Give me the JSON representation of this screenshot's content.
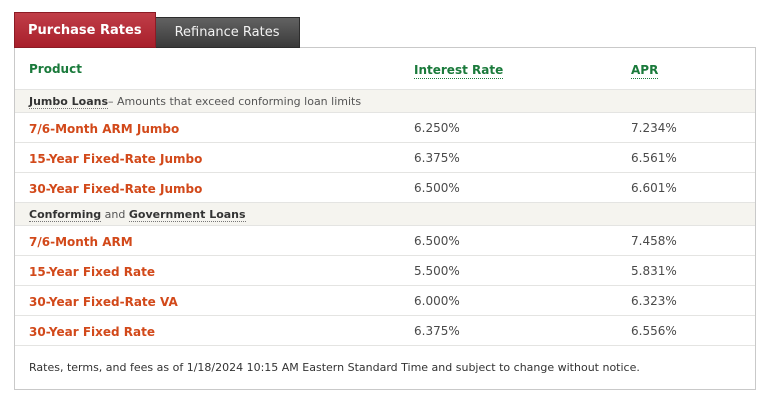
{
  "colors": {
    "active_tab_red": "#a81f2b",
    "inactive_tab_gray": "#3a3a3a",
    "header_green": "#1a7a3b",
    "product_orange": "#d2491a",
    "section_band": "#f5f4ef"
  },
  "tabs": [
    {
      "label": "Purchase Rates",
      "active": true
    },
    {
      "label": "Refinance Rates",
      "active": false
    }
  ],
  "table": {
    "columns": [
      "Product",
      "Interest Rate",
      "APR"
    ],
    "sections": [
      {
        "term1": "Jumbo Loans",
        "mid": "– Amounts that exceed conforming loan limits",
        "rows": [
          {
            "product": "7/6-Month ARM Jumbo",
            "interest_rate": "6.250%",
            "apr": "7.234%"
          },
          {
            "product": "15-Year Fixed-Rate Jumbo",
            "interest_rate": "6.375%",
            "apr": "6.561%"
          },
          {
            "product": "30-Year Fixed-Rate Jumbo",
            "interest_rate": "6.500%",
            "apr": "6.601%"
          }
        ]
      },
      {
        "term1": "Conforming",
        "mid": " and ",
        "term2": "Government Loans",
        "rows": [
          {
            "product": "7/6-Month ARM",
            "interest_rate": "6.500%",
            "apr": "7.458%"
          },
          {
            "product": "15-Year Fixed Rate",
            "interest_rate": "5.500%",
            "apr": "5.831%"
          },
          {
            "product": "30-Year Fixed-Rate VA",
            "interest_rate": "6.000%",
            "apr": "6.323%"
          },
          {
            "product": "30-Year Fixed Rate",
            "interest_rate": "6.375%",
            "apr": "6.556%"
          }
        ]
      }
    ]
  },
  "footer": {
    "text": "Rates, terms, and fees as of 1/18/2024 10:15 AM Eastern Standard Time and subject to change without notice."
  }
}
